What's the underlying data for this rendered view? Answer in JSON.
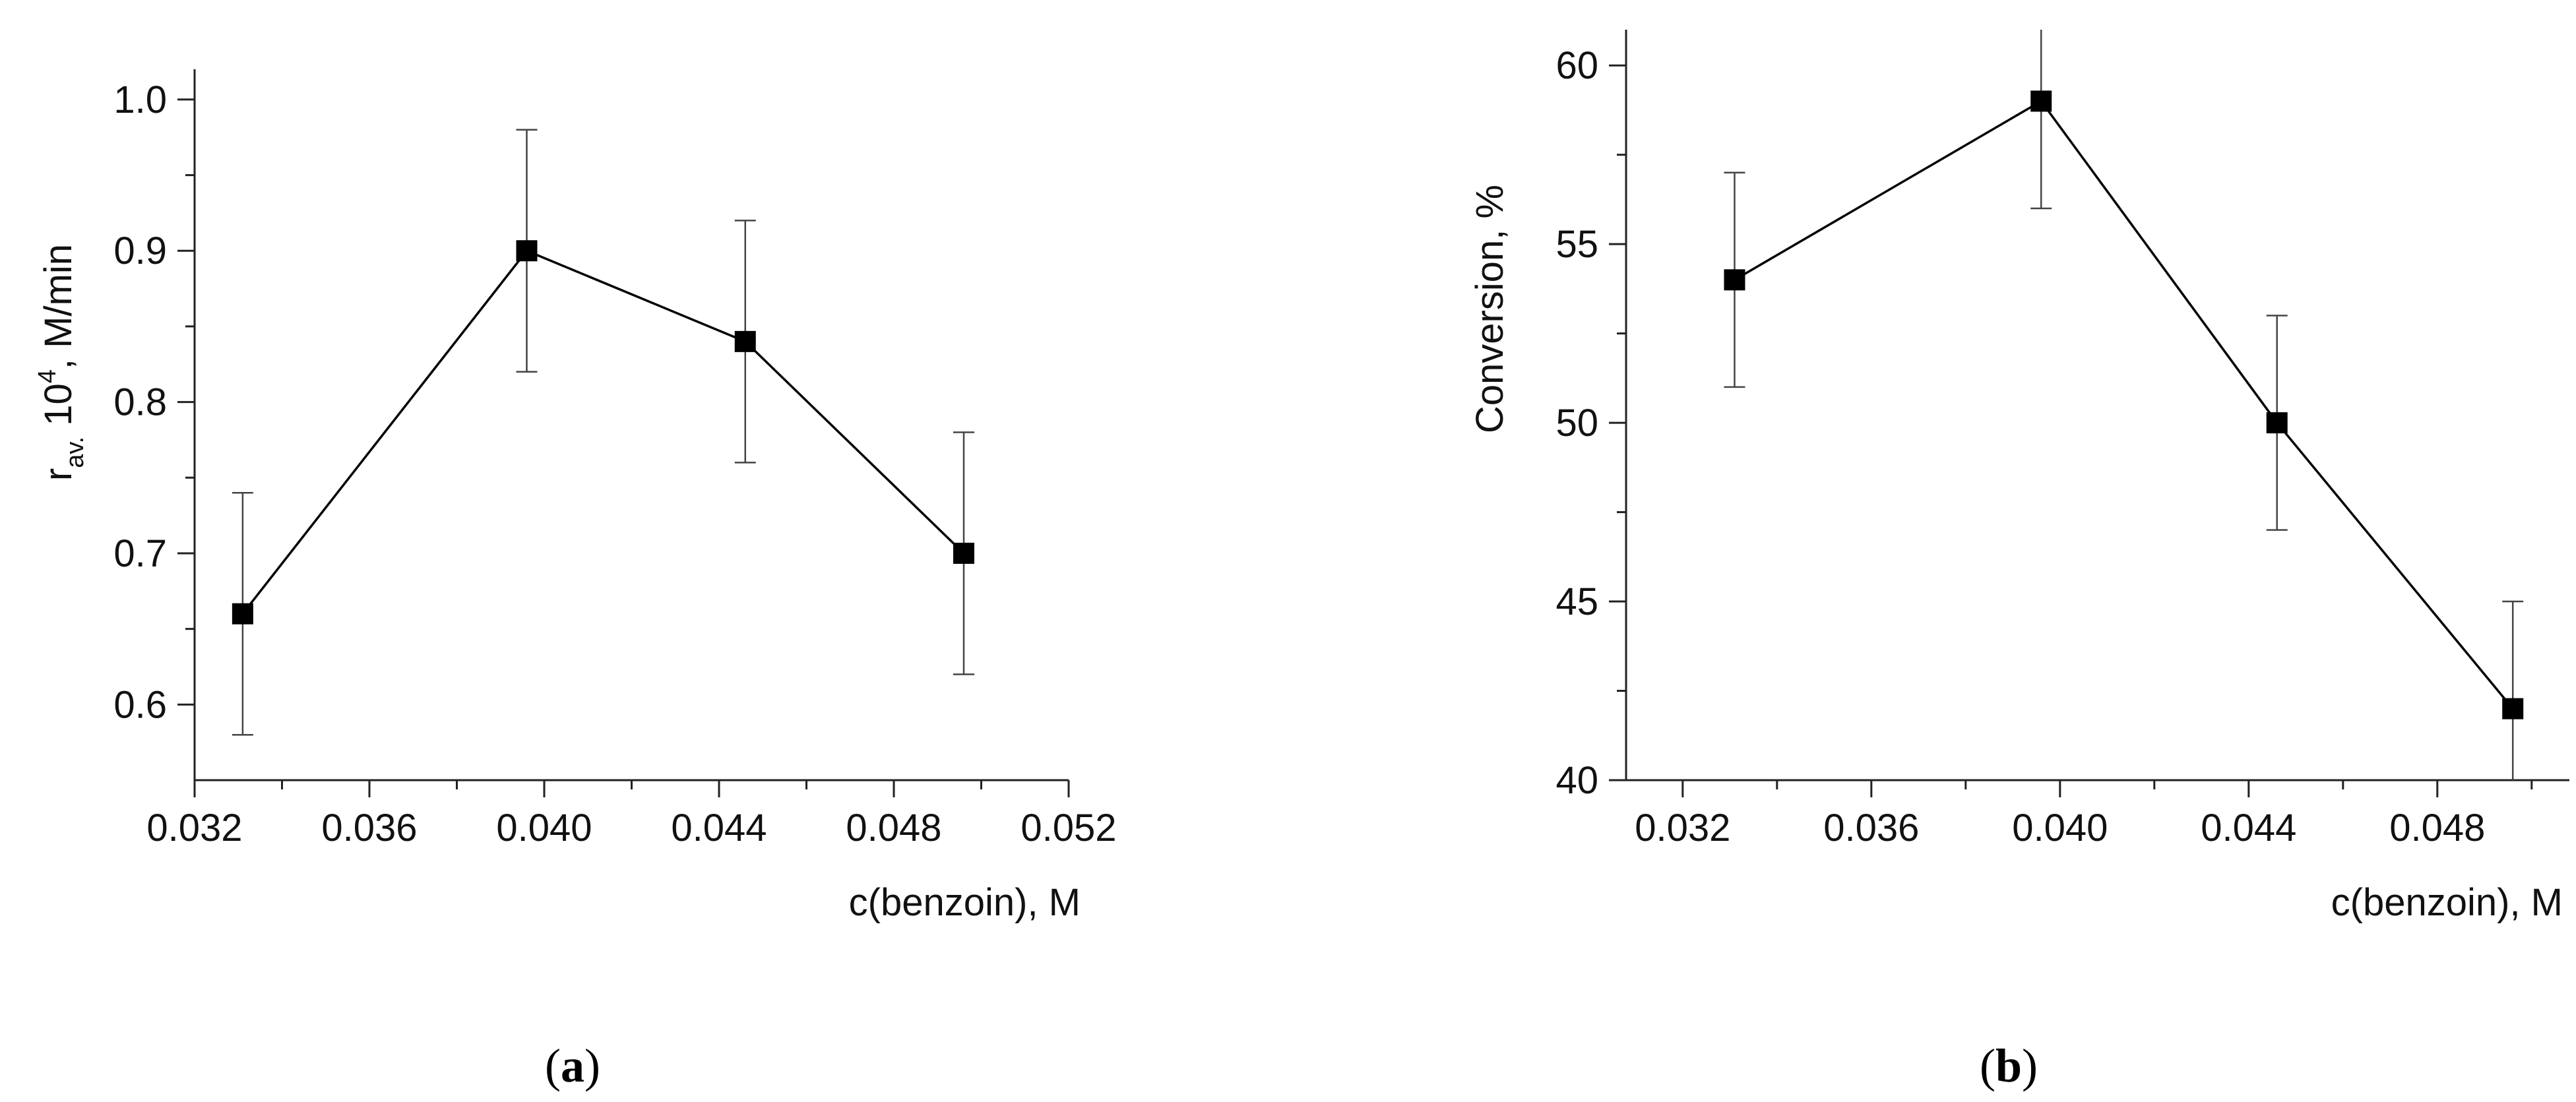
{
  "chart_data": [
    {
      "type": "line",
      "panel": "a",
      "panel_label": "a",
      "x": [
        0.0331,
        0.0396,
        0.0446,
        0.0496
      ],
      "series": [
        {
          "name": "r_av",
          "values": [
            0.66,
            0.9,
            0.84,
            0.7
          ],
          "error": [
            0.08,
            0.08,
            0.08,
            0.08
          ]
        }
      ],
      "xlabel": "c(benzoin), M",
      "ylabel": {
        "symbol": "r",
        "subscript": "av.",
        "middle": " 10",
        "superscript": "4",
        "rest": ", M/min"
      },
      "xlim": [
        0.032,
        0.052
      ],
      "ylim": [
        0.55,
        1.02
      ],
      "xticks": [
        "0.032",
        "0.036",
        "0.040",
        "0.044",
        "0.048",
        "0.052"
      ],
      "xtick_values": [
        0.032,
        0.036,
        0.04,
        0.044,
        0.048,
        0.052
      ],
      "yticks": [
        "0.6",
        "0.7",
        "0.8",
        "0.9",
        "1.0"
      ],
      "ytick_values": [
        0.6,
        0.7,
        0.8,
        0.9,
        1.0
      ],
      "marker": "square",
      "grid": false,
      "colors": {
        "line": "#000000",
        "marker": "#000000",
        "error": "#444444",
        "axis": "#222222"
      }
    },
    {
      "type": "line",
      "panel": "b",
      "panel_label": "b",
      "x": [
        0.0331,
        0.0396,
        0.0446,
        0.0496
      ],
      "series": [
        {
          "name": "Conversion",
          "values": [
            54,
            59,
            50,
            42
          ],
          "error": [
            3,
            3,
            3,
            3
          ]
        }
      ],
      "xlabel": "c(benzoin), M",
      "ylabel": {
        "symbol": "Conversion, %",
        "subscript": "",
        "middle": "",
        "superscript": "",
        "rest": ""
      },
      "xlim": [
        0.0308,
        0.0508
      ],
      "ylim": [
        40,
        61
      ],
      "xticks": [
        "0.032",
        "0.036",
        "0.040",
        "0.044",
        "0.048"
      ],
      "xtick_values": [
        0.032,
        0.036,
        0.04,
        0.044,
        0.048
      ],
      "yticks": [
        "40",
        "45",
        "50",
        "55",
        "60"
      ],
      "ytick_values": [
        40,
        45,
        50,
        55,
        60
      ],
      "marker": "square",
      "grid": false,
      "colors": {
        "line": "#000000",
        "marker": "#000000",
        "error": "#444444",
        "axis": "#222222"
      }
    }
  ]
}
